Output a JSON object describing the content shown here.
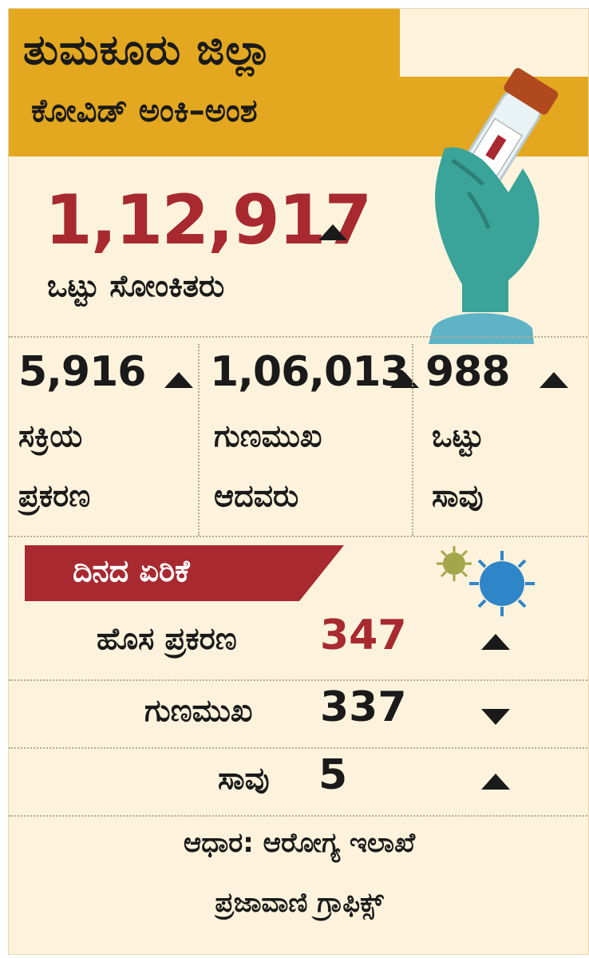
{
  "header": {
    "title": "ತುಮಕೂರು ಜಿಲ್ಲಾ",
    "subtitle": "ಕೋವಿಡ್ ಅಂಕಿ–ಅಂಶ"
  },
  "total": {
    "value": "1,12,917",
    "label": "ಒಟ್ಟು ಸೋಂಕಿತರು",
    "trend": "up"
  },
  "stats": [
    {
      "value": "5,916",
      "label_line1": "ಸಕ್ರಿಯ",
      "label_line2": "ಪ್ರಕರಣ",
      "trend": "up"
    },
    {
      "value": "1,06,013",
      "label_line1": "ಗುಣಮುಖ",
      "label_line2": "ಆದವರು",
      "trend": "up"
    },
    {
      "value": "988",
      "label_line1": "ಒಟ್ಟು",
      "label_line2": "ಸಾವು",
      "trend": "up"
    }
  ],
  "daily": {
    "title": "ದಿನದ ಏರಿಕೆ",
    "rows": [
      {
        "label": "ಹೊಸ ಪ್ರಕರಣ",
        "value": "347",
        "trend": "up"
      },
      {
        "label": "ಗುಣಮುಖ",
        "value": "337",
        "trend": "down"
      },
      {
        "label": "ಸಾವು",
        "value": "5",
        "trend": "up"
      }
    ]
  },
  "footer": {
    "source": "ಆಧಾರ: ಆರೋಗ್ಯ ಇಲಾಖೆ",
    "credit": "ಪ್ರಜಾವಾಣಿ ಗ್ರಾಫಿಕ್ಸ್"
  },
  "colors": {
    "accent": "#a82930",
    "header": "#e3a81f",
    "background": "#fdf3dc",
    "glove": "#3aa39a",
    "virus": "#2e86c9"
  }
}
